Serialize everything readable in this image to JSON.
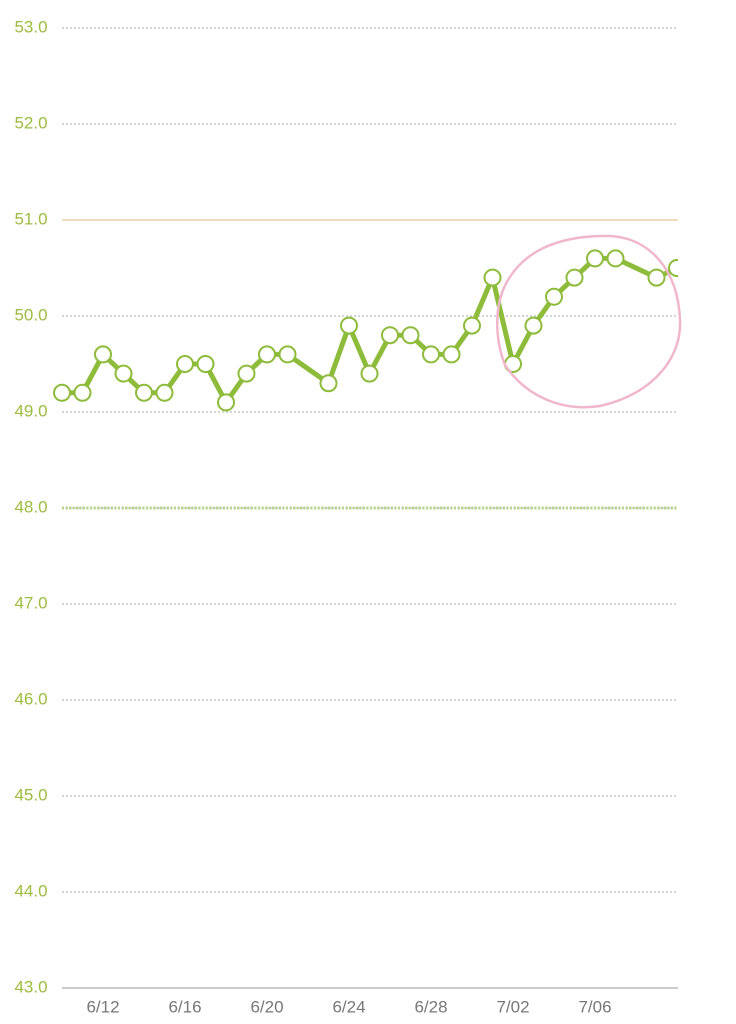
{
  "chart_data": {
    "type": "line",
    "x": [
      "6/10",
      "6/11",
      "6/12",
      "6/13",
      "6/14",
      "6/15",
      "6/16",
      "6/17",
      "6/18",
      "6/19",
      "6/20",
      "6/21",
      "6/23",
      "6/24",
      "6/25",
      "6/26",
      "6/27",
      "6/28",
      "6/29",
      "6/30",
      "7/01",
      "7/02",
      "7/03",
      "7/04",
      "7/05",
      "7/06",
      "7/07",
      "7/09",
      "7/10"
    ],
    "series": [
      {
        "color": "#8dbb3a",
        "values": [
          49.2,
          49.2,
          49.6,
          49.4,
          49.2,
          49.2,
          49.5,
          49.5,
          49.1,
          49.4,
          49.6,
          49.6,
          49.3,
          49.9,
          49.4,
          49.8,
          49.8,
          49.6,
          49.6,
          49.9,
          50.4,
          49.5,
          49.9,
          50.2,
          50.4,
          50.6,
          50.6,
          50.4,
          50.5
        ]
      }
    ],
    "ylim": [
      43,
      53
    ],
    "yticks": [
      {
        "value": 43,
        "label": "43.0"
      },
      {
        "value": 44,
        "label": "44.0"
      },
      {
        "value": 45,
        "label": "45.0"
      },
      {
        "value": 46,
        "label": "46.0"
      },
      {
        "value": 47,
        "label": "47.0"
      },
      {
        "value": 48,
        "label": "48.0"
      },
      {
        "value": 49,
        "label": "49.0"
      },
      {
        "value": 50,
        "label": "50.0"
      },
      {
        "value": 51,
        "label": "51.0"
      },
      {
        "value": 52,
        "label": "52.0"
      },
      {
        "value": 53,
        "label": "53.0"
      }
    ],
    "xticks": [
      "6/12",
      "6/16",
      "6/20",
      "6/24",
      "6/28",
      "7/02",
      "7/06"
    ],
    "reference_lines": [
      {
        "value": 51,
        "color": "#e6c690"
      },
      {
        "value": 48,
        "color": "#b9d48a"
      }
    ],
    "grid": true
  }
}
